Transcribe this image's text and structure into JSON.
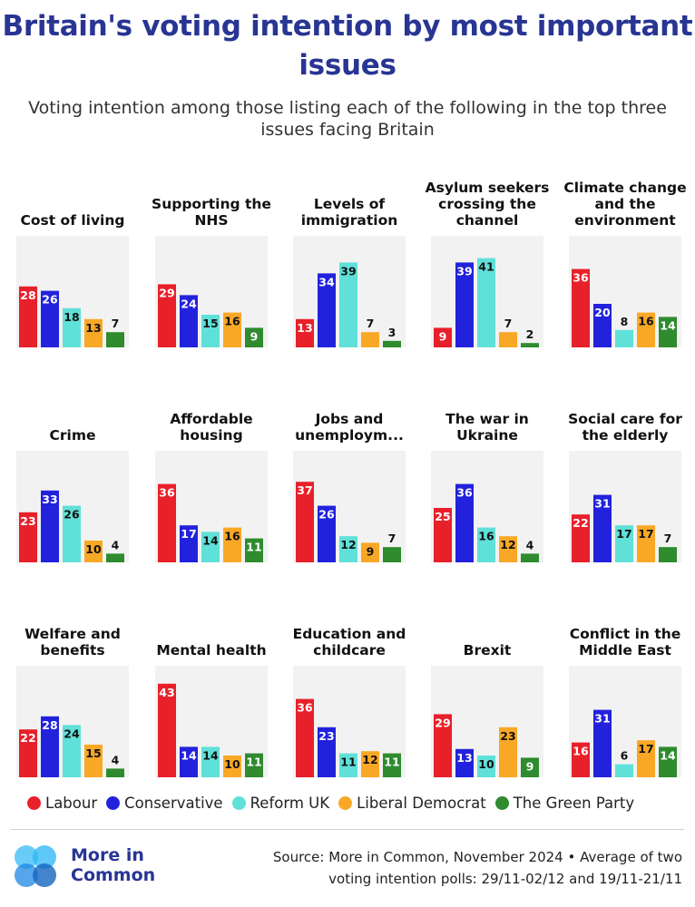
{
  "title": "Britain's voting intention by most important issues",
  "subtitle": "Voting intention among those listing each of the following in the top three issues facing Britain",
  "colors": {
    "Labour": "#e8202a",
    "Conservative": "#2222dd",
    "Reform UK": "#5fe0d8",
    "Liberal Democrat": "#f9a825",
    "The Green Party": "#2e8b2e",
    "title": "#283593"
  },
  "legend": [
    "Labour",
    "Conservative",
    "Reform UK",
    "Liberal Democrat",
    "The Green Party"
  ],
  "footer": {
    "brand": "More in Common",
    "brand_line1": "More in",
    "brand_line2": "Common",
    "source_line1": "Source: More in Common, November 2024 • Average of two",
    "source_line2": "voting intention polls: 29/11-02/12 and 19/11-21/11"
  },
  "chart_data": {
    "type": "bar",
    "series_names": [
      "Labour",
      "Conservative",
      "Reform UK",
      "Liberal Democrat",
      "The Green Party"
    ],
    "ylim": [
      0,
      45
    ],
    "panels": [
      {
        "title": "Cost of living",
        "values": [
          28,
          26,
          18,
          13,
          7
        ]
      },
      {
        "title": "Supporting the NHS",
        "values": [
          29,
          24,
          15,
          16,
          9
        ]
      },
      {
        "title": "Levels of immigration",
        "values": [
          13,
          34,
          39,
          7,
          3
        ]
      },
      {
        "title": "Asylum seekers crossing the channel",
        "values": [
          9,
          39,
          41,
          7,
          2
        ]
      },
      {
        "title": "Climate change and the environment",
        "values": [
          36,
          20,
          8,
          16,
          14
        ]
      },
      {
        "title": "Crime",
        "values": [
          23,
          33,
          26,
          10,
          4
        ]
      },
      {
        "title": "Affordable housing",
        "values": [
          36,
          17,
          14,
          16,
          11
        ]
      },
      {
        "title": "Jobs and unemploym...",
        "values": [
          37,
          26,
          12,
          9,
          7
        ]
      },
      {
        "title": "The war in Ukraine",
        "values": [
          25,
          36,
          16,
          12,
          4
        ]
      },
      {
        "title": "Social care for the elderly",
        "values": [
          22,
          31,
          17,
          17,
          7
        ]
      },
      {
        "title": "Welfare and benefits",
        "values": [
          22,
          28,
          24,
          15,
          4
        ]
      },
      {
        "title": "Mental health",
        "values": [
          43,
          14,
          14,
          10,
          11
        ]
      },
      {
        "title": "Education and childcare",
        "values": [
          36,
          23,
          11,
          12,
          11
        ]
      },
      {
        "title": "Brexit",
        "values": [
          29,
          13,
          10,
          23,
          9
        ]
      },
      {
        "title": "Conflict in the Middle East",
        "values": [
          16,
          31,
          6,
          17,
          14
        ]
      }
    ]
  }
}
